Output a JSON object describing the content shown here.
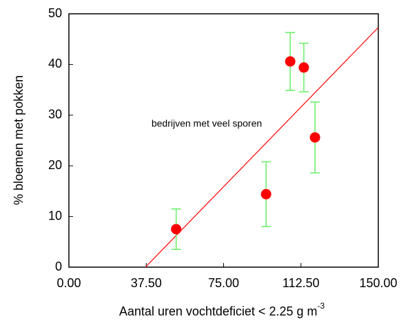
{
  "chart_data": {
    "type": "scatter",
    "ylabel": "% bloemen met pokken",
    "xlabel": "Aantal uren vochtdeficiet < 2.25 g m",
    "xlabel_sup": "-3",
    "annotation": "bedrijven met veel sporen",
    "x": [
      52,
      95.6,
      107.3,
      113.9,
      119.3
    ],
    "values": [
      7.5,
      14.4,
      40.6,
      39.4,
      25.6
    ],
    "errors": [
      4,
      6.4,
      5.7,
      4.8,
      7
    ],
    "color": "#ff0000",
    "error_color": "#66ee66",
    "fit": {
      "x": [
        37.1,
        150
      ],
      "y": [
        0,
        47.3
      ],
      "color": "#ff0000"
    },
    "xlim": [
      0,
      150
    ],
    "ylim": [
      0,
      50
    ],
    "xticks": [
      {
        "value": 0,
        "label": "0.00"
      },
      {
        "value": 37.5,
        "label": "37.50"
      },
      {
        "value": 75,
        "label": "75.00"
      },
      {
        "value": 112.5,
        "label": "112.50"
      },
      {
        "value": 150,
        "label": "150.00"
      }
    ],
    "yticks": [
      0,
      10,
      20,
      30,
      40,
      50
    ]
  }
}
